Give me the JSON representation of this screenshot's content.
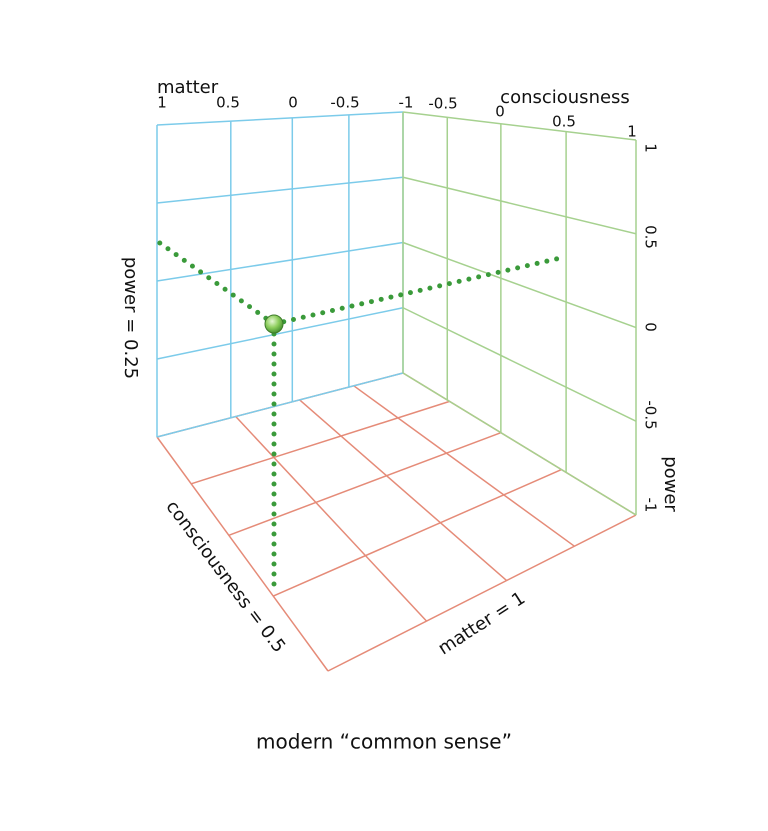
{
  "matter_axis": {
    "title": "matter",
    "ticks": [
      "1",
      "0.5",
      "0",
      "-0.5",
      "-1"
    ]
  },
  "consciousness_axis": {
    "title": "consciousness",
    "ticks": [
      "-0.5",
      "0",
      "0.5",
      "1"
    ]
  },
  "power_axis": {
    "title": "power",
    "ticks": [
      "1",
      "0.5",
      "0",
      "-0.5",
      "-1"
    ]
  },
  "plane_labels": {
    "power": "power = 0.25",
    "consciousness": "consciousness = 0.5",
    "matter": "matter = 1"
  },
  "caption": "modern “common sense”"
}
